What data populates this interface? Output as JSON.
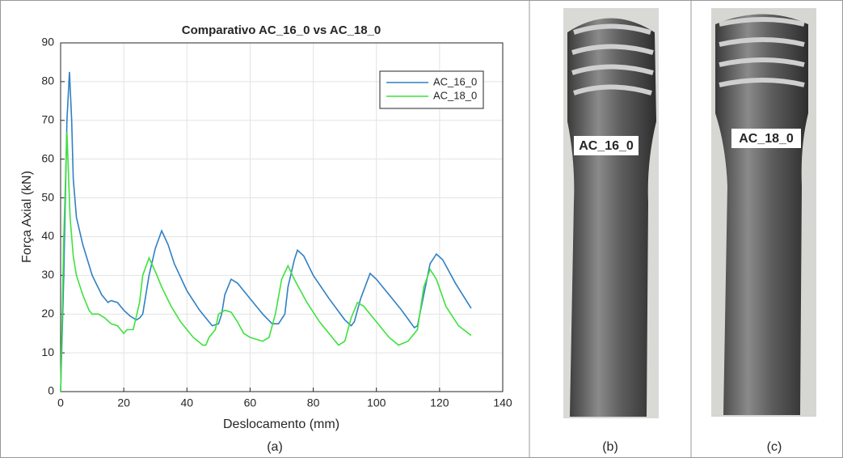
{
  "chart_data": {
    "type": "line",
    "title": "Comparativo AC_16_0 vs AC_18_0",
    "xlabel": "Deslocamento (mm)",
    "ylabel": "Força Axial (kN)",
    "xlim": [
      0,
      140
    ],
    "xticks": [
      0,
      20,
      40,
      60,
      80,
      100,
      120,
      140
    ],
    "ylim": [
      0,
      90
    ],
    "yticks": [
      0,
      10,
      20,
      30,
      40,
      50,
      60,
      70,
      80,
      90
    ],
    "grid": true,
    "legend": "upper right",
    "series": [
      {
        "name": "AC_16_0",
        "color": "#2f80c4",
        "x": [
          0,
          1,
          2,
          2.8,
          3.5,
          4,
          5,
          7,
          10,
          13,
          15,
          16,
          18,
          20,
          22,
          24,
          25,
          26,
          27,
          28,
          30,
          32,
          34,
          36,
          40,
          44,
          48,
          50,
          51,
          52,
          54,
          56,
          60,
          64,
          67,
          69,
          71,
          72,
          74,
          75,
          77,
          80,
          85,
          90,
          92,
          93,
          95,
          98,
          100,
          104,
          108,
          112,
          113,
          115,
          117,
          119,
          121,
          125,
          130
        ],
        "values": [
          0,
          30,
          70,
          82.5,
          70,
          55,
          45,
          38,
          30,
          25,
          23,
          23.5,
          23,
          21,
          19.5,
          18.5,
          19,
          20,
          25,
          30,
          37,
          41.5,
          38,
          33,
          26,
          21,
          17,
          17.5,
          20,
          25,
          29,
          28,
          24,
          20,
          17.5,
          17.5,
          20,
          27,
          34,
          36.5,
          35,
          30,
          24,
          18.5,
          17,
          18,
          24,
          30.5,
          29,
          25,
          21,
          16.5,
          17,
          25,
          33,
          35.5,
          34,
          28,
          21.5
        ]
      },
      {
        "name": "AC_18_0",
        "color": "#3ee23e",
        "x": [
          0,
          1,
          2,
          3,
          4,
          5,
          7,
          9,
          10,
          12,
          14,
          16,
          18,
          20,
          21,
          23,
          25,
          26,
          28,
          30,
          32,
          35,
          38,
          42,
          45,
          46,
          47,
          49,
          50,
          52,
          54,
          56,
          58,
          60,
          62,
          64,
          66,
          68,
          70,
          72,
          74,
          78,
          82,
          86,
          88,
          90,
          92,
          94,
          96,
          100,
          104,
          107,
          110,
          113,
          115,
          117,
          119,
          122,
          126,
          130
        ],
        "values": [
          0,
          40,
          67,
          45,
          35,
          30,
          25,
          21,
          20,
          20,
          19,
          17.5,
          17,
          15,
          16,
          16,
          23,
          30,
          34.5,
          31,
          27,
          22,
          18,
          14,
          12,
          12,
          14,
          16,
          20,
          21,
          20.5,
          18,
          15,
          14,
          13.5,
          13,
          14,
          20,
          29,
          32.5,
          29,
          23,
          18,
          14,
          12,
          13,
          19,
          23,
          22,
          18,
          14,
          12,
          13,
          16,
          27,
          31.5,
          29,
          22,
          17,
          14.5
        ]
      }
    ]
  },
  "captions": [
    "(a)",
    "(b)",
    "(c)"
  ],
  "photo_labels": [
    "AC_16_0",
    "AC_18_0"
  ]
}
